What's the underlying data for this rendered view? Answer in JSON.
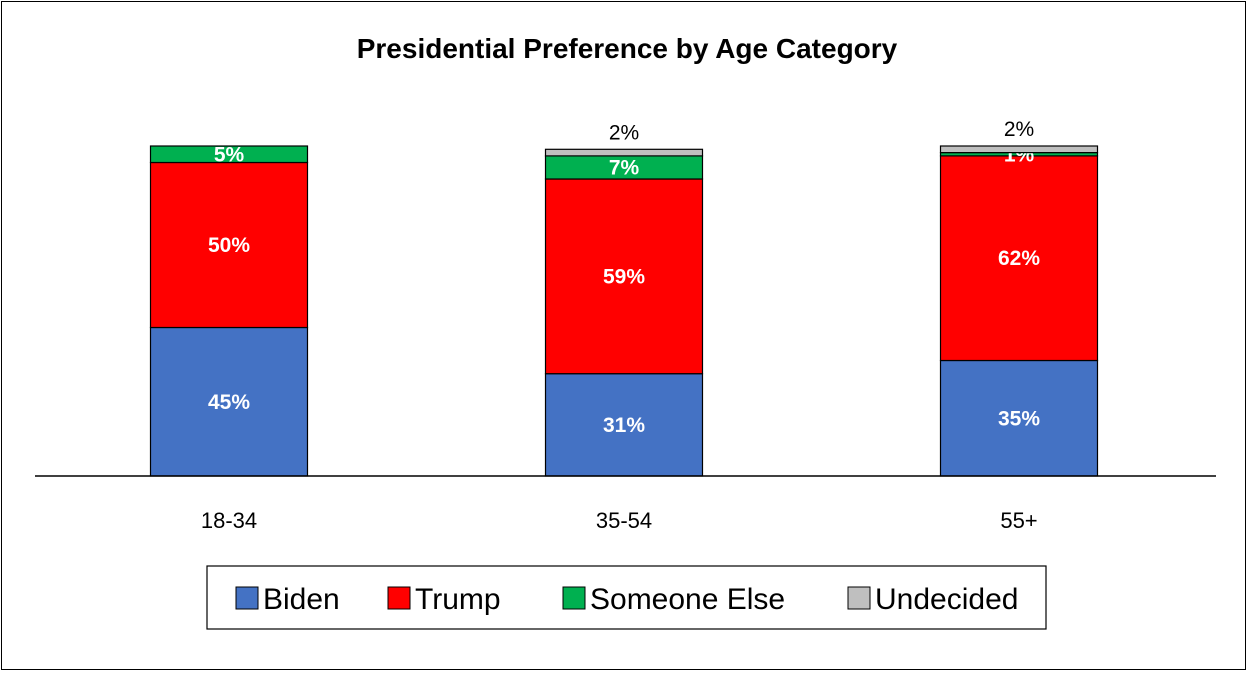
{
  "chart_data": {
    "type": "bar",
    "stacked": true,
    "title": "Presidential Preference by Age Category",
    "xlabel": "",
    "ylabel": "",
    "ylim": [
      0,
      100
    ],
    "grid": false,
    "legend_position": "bottom",
    "categories": [
      "18-34",
      "35-54",
      "55+"
    ],
    "series": [
      {
        "name": "Biden",
        "color": "#4472C4",
        "values": [
          45,
          31,
          35
        ],
        "labels": [
          "45%",
          "31%",
          "35%"
        ]
      },
      {
        "name": "Trump",
        "color": "#FF0000",
        "values": [
          50,
          59,
          62
        ],
        "labels": [
          "50%",
          "59%",
          "62%"
        ]
      },
      {
        "name": "Someone Else",
        "color": "#00B050",
        "values": [
          5,
          7,
          1
        ],
        "labels": [
          "5%",
          "7%",
          "1%"
        ]
      },
      {
        "name": "Undecided",
        "color": "#BFBFBF",
        "values": [
          0,
          2,
          2
        ],
        "labels": [
          "",
          "2%",
          "2%"
        ]
      }
    ]
  }
}
